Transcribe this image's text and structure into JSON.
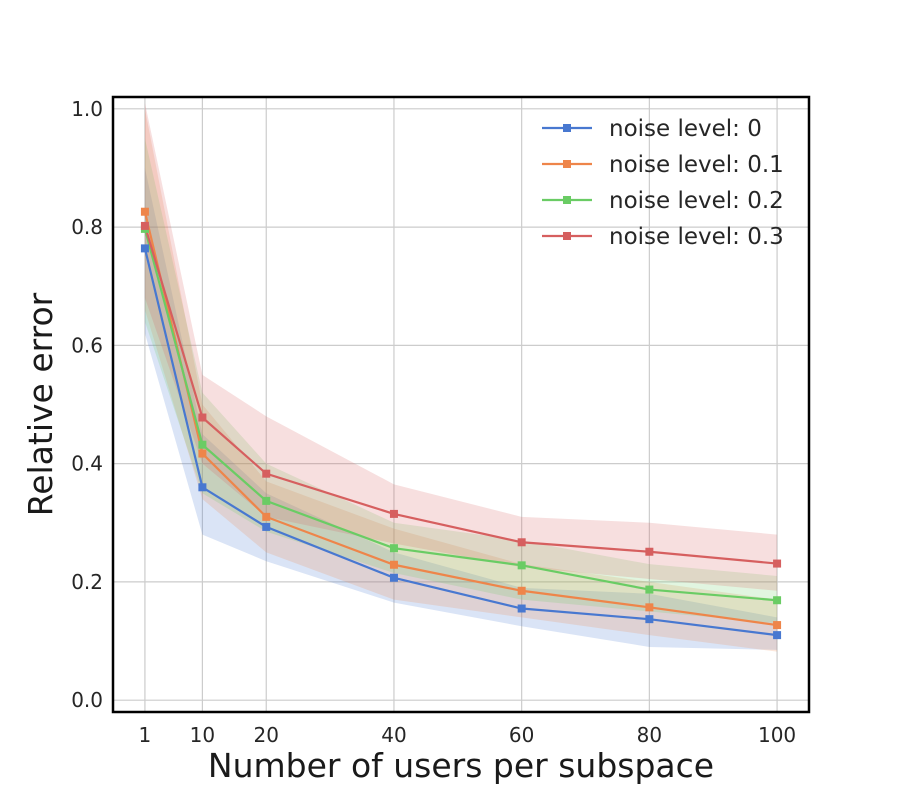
{
  "chart_data": {
    "type": "line",
    "title": "",
    "xlabel": "Number of users per subspace",
    "ylabel": "Relative error",
    "x": [
      1,
      10,
      20,
      40,
      60,
      80,
      100
    ],
    "xticks": [
      1,
      10,
      20,
      40,
      60,
      80,
      100
    ],
    "xtick_labels": [
      "1",
      "10",
      "20",
      "40",
      "60",
      "80",
      "100"
    ],
    "yticks": [
      0.0,
      0.2,
      0.4,
      0.6,
      0.8,
      1.0
    ],
    "ytick_labels": [
      "0.0",
      "0.2",
      "0.4",
      "0.6",
      "0.8",
      "1.0"
    ],
    "xlim": [
      -4,
      105
    ],
    "ylim": [
      -0.02,
      1.02
    ],
    "grid": true,
    "legend_position": "top-right",
    "series": [
      {
        "name": "noise level: 0",
        "color": "#4878d0",
        "values": [
          0.764,
          0.36,
          0.293,
          0.207,
          0.155,
          0.137,
          0.11
        ],
        "lower": [
          0.62,
          0.28,
          0.235,
          0.165,
          0.125,
          0.09,
          0.085
        ],
        "upper": [
          0.9,
          0.45,
          0.35,
          0.25,
          0.19,
          0.18,
          0.14
        ]
      },
      {
        "name": "noise level: 0.1",
        "color": "#ee854a",
        "values": [
          0.826,
          0.417,
          0.31,
          0.229,
          0.185,
          0.157,
          0.127
        ],
        "lower": [
          0.66,
          0.34,
          0.25,
          0.17,
          0.14,
          0.11,
          0.082
        ],
        "upper": [
          1.0,
          0.5,
          0.37,
          0.29,
          0.23,
          0.2,
          0.17
        ]
      },
      {
        "name": "noise level: 0.2",
        "color": "#6acc64",
        "values": [
          0.797,
          0.432,
          0.337,
          0.257,
          0.228,
          0.187,
          0.169
        ],
        "lower": [
          0.64,
          0.35,
          0.285,
          0.215,
          0.17,
          0.15,
          0.13
        ],
        "upper": [
          0.95,
          0.52,
          0.4,
          0.3,
          0.27,
          0.23,
          0.21
        ]
      },
      {
        "name": "noise level: 0.3",
        "color": "#d65f5f",
        "values": [
          0.802,
          0.478,
          0.383,
          0.315,
          0.267,
          0.251,
          0.231
        ],
        "lower": [
          0.68,
          0.4,
          0.31,
          0.265,
          0.225,
          0.205,
          0.185
        ],
        "upper": [
          1.01,
          0.55,
          0.48,
          0.365,
          0.31,
          0.3,
          0.28
        ]
      }
    ]
  }
}
